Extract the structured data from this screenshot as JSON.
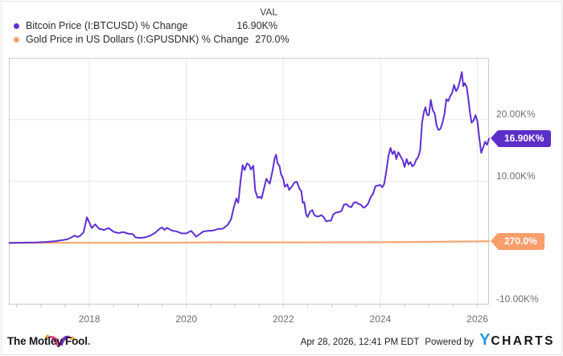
{
  "legend": {
    "val_header": "VAL",
    "series": [
      {
        "label": "Bitcoin Price (I:BTCUSD) % Change",
        "value": "16.90K%",
        "color": "#5f30d2"
      },
      {
        "label": "Gold Price in US Dollars (I:GPUSDNK) % Change",
        "value": "270.0%",
        "color": "#f9a26b"
      }
    ]
  },
  "chart_data": {
    "type": "line",
    "grid": true,
    "legend_position": "top-left",
    "x_axis": {
      "range": [
        2016.34,
        2026.24
      ],
      "ticks": [
        2018,
        2020,
        2022,
        2024,
        2026
      ],
      "labels": [
        "2018",
        "2020",
        "2022",
        "2024",
        "2026"
      ],
      "minor_tick_step_years": 0.5
    },
    "y_axis": {
      "range_pct": [
        -10000,
        30000
      ],
      "gridline_values_pct": [
        20000,
        10000,
        0
      ],
      "tick_values_pct": [
        20000,
        10000,
        -10000
      ],
      "tick_labels": [
        "20.00K%",
        "10.00K%",
        "-10.00K%"
      ]
    },
    "series": [
      {
        "name": "Bitcoin Price (I:BTCUSD) % Change",
        "color": "#5f30d2",
        "end_label": "16.90K%",
        "end_value_pct": 16900,
        "points": [
          [
            2016.35,
            0
          ],
          [
            2016.6,
            30
          ],
          [
            2016.9,
            80
          ],
          [
            2017.1,
            150
          ],
          [
            2017.3,
            280
          ],
          [
            2017.45,
            450
          ],
          [
            2017.55,
            600
          ],
          [
            2017.62,
            850
          ],
          [
            2017.7,
            1200
          ],
          [
            2017.75,
            950
          ],
          [
            2017.8,
            1100
          ],
          [
            2017.88,
            1700
          ],
          [
            2017.95,
            4150
          ],
          [
            2018.0,
            3300
          ],
          [
            2018.05,
            2400
          ],
          [
            2018.12,
            3000
          ],
          [
            2018.2,
            2300
          ],
          [
            2018.3,
            2100
          ],
          [
            2018.4,
            2400
          ],
          [
            2018.5,
            1800
          ],
          [
            2018.6,
            1600
          ],
          [
            2018.7,
            1750
          ],
          [
            2018.8,
            1500
          ],
          [
            2018.9,
            1400
          ],
          [
            2018.95,
            900
          ],
          [
            2019.05,
            800
          ],
          [
            2019.15,
            900
          ],
          [
            2019.25,
            1150
          ],
          [
            2019.35,
            1600
          ],
          [
            2019.45,
            2300
          ],
          [
            2019.5,
            2500
          ],
          [
            2019.55,
            2100
          ],
          [
            2019.6,
            2450
          ],
          [
            2019.7,
            2000
          ],
          [
            2019.8,
            1850
          ],
          [
            2019.9,
            1550
          ],
          [
            2020.0,
            1550
          ],
          [
            2020.1,
            1950
          ],
          [
            2020.2,
            1000
          ],
          [
            2020.28,
            1450
          ],
          [
            2020.35,
            1850
          ],
          [
            2020.45,
            1950
          ],
          [
            2020.55,
            2000
          ],
          [
            2020.65,
            2250
          ],
          [
            2020.75,
            2300
          ],
          [
            2020.85,
            2900
          ],
          [
            2020.92,
            3800
          ],
          [
            2020.98,
            5800
          ],
          [
            2021.03,
            7200
          ],
          [
            2021.07,
            6500
          ],
          [
            2021.12,
            10200
          ],
          [
            2021.16,
            12600
          ],
          [
            2021.2,
            11800
          ],
          [
            2021.25,
            12900
          ],
          [
            2021.3,
            12600
          ],
          [
            2021.33,
            11900
          ],
          [
            2021.38,
            12500
          ],
          [
            2021.42,
            8500
          ],
          [
            2021.47,
            7300
          ],
          [
            2021.52,
            7500
          ],
          [
            2021.55,
            7200
          ],
          [
            2021.6,
            8800
          ],
          [
            2021.65,
            10400
          ],
          [
            2021.68,
            10000
          ],
          [
            2021.72,
            9600
          ],
          [
            2021.78,
            11800
          ],
          [
            2021.82,
            13700
          ],
          [
            2021.85,
            14300
          ],
          [
            2021.88,
            12900
          ],
          [
            2021.92,
            12500
          ],
          [
            2021.95,
            11200
          ],
          [
            2022.0,
            10300
          ],
          [
            2022.03,
            9100
          ],
          [
            2022.08,
            9500
          ],
          [
            2022.12,
            8600
          ],
          [
            2022.18,
            9200
          ],
          [
            2022.23,
            9800
          ],
          [
            2022.28,
            9900
          ],
          [
            2022.33,
            8800
          ],
          [
            2022.37,
            8400
          ],
          [
            2022.4,
            6500
          ],
          [
            2022.43,
            6600
          ],
          [
            2022.47,
            4600
          ],
          [
            2022.5,
            4200
          ],
          [
            2022.55,
            5100
          ],
          [
            2022.6,
            5300
          ],
          [
            2022.63,
            4600
          ],
          [
            2022.68,
            4300
          ],
          [
            2022.73,
            4300
          ],
          [
            2022.78,
            4500
          ],
          [
            2022.83,
            4200
          ],
          [
            2022.88,
            3500
          ],
          [
            2022.93,
            3600
          ],
          [
            2022.98,
            3600
          ],
          [
            2023.03,
            4600
          ],
          [
            2023.08,
            4900
          ],
          [
            2023.15,
            5000
          ],
          [
            2023.2,
            5200
          ],
          [
            2023.25,
            6200
          ],
          [
            2023.3,
            6300
          ],
          [
            2023.35,
            5900
          ],
          [
            2023.4,
            5800
          ],
          [
            2023.45,
            6500
          ],
          [
            2023.5,
            6600
          ],
          [
            2023.55,
            6300
          ],
          [
            2023.6,
            6200
          ],
          [
            2023.65,
            5700
          ],
          [
            2023.7,
            5900
          ],
          [
            2023.75,
            6400
          ],
          [
            2023.8,
            7400
          ],
          [
            2023.85,
            8000
          ],
          [
            2023.9,
            9200
          ],
          [
            2023.95,
            9300
          ],
          [
            2024.0,
            9400
          ],
          [
            2024.04,
            9000
          ],
          [
            2024.08,
            9600
          ],
          [
            2024.12,
            11500
          ],
          [
            2024.17,
            14200
          ],
          [
            2024.21,
            15400
          ],
          [
            2024.25,
            14400
          ],
          [
            2024.29,
            14900
          ],
          [
            2024.33,
            13600
          ],
          [
            2024.37,
            14700
          ],
          [
            2024.42,
            14000
          ],
          [
            2024.46,
            13400
          ],
          [
            2024.5,
            12300
          ],
          [
            2024.54,
            13600
          ],
          [
            2024.58,
            12700
          ],
          [
            2024.62,
            13100
          ],
          [
            2024.66,
            12400
          ],
          [
            2024.7,
            12700
          ],
          [
            2024.74,
            13500
          ],
          [
            2024.78,
            13900
          ],
          [
            2024.82,
            15000
          ],
          [
            2024.86,
            19500
          ],
          [
            2024.9,
            21300
          ],
          [
            2024.93,
            22000
          ],
          [
            2024.96,
            20800
          ],
          [
            2025.0,
            20700
          ],
          [
            2025.04,
            23200
          ],
          [
            2025.08,
            21500
          ],
          [
            2025.12,
            21000
          ],
          [
            2025.16,
            19000
          ],
          [
            2025.2,
            18300
          ],
          [
            2025.24,
            18500
          ],
          [
            2025.28,
            19500
          ],
          [
            2025.32,
            20800
          ],
          [
            2025.36,
            23300
          ],
          [
            2025.4,
            23000
          ],
          [
            2025.44,
            23800
          ],
          [
            2025.48,
            24300
          ],
          [
            2025.52,
            25600
          ],
          [
            2025.56,
            24600
          ],
          [
            2025.6,
            25100
          ],
          [
            2025.64,
            26300
          ],
          [
            2025.68,
            27700
          ],
          [
            2025.71,
            25400
          ],
          [
            2025.74,
            25900
          ],
          [
            2025.78,
            25300
          ],
          [
            2025.81,
            23600
          ],
          [
            2025.85,
            21000
          ],
          [
            2025.88,
            19500
          ],
          [
            2025.92,
            19800
          ],
          [
            2025.96,
            20700
          ],
          [
            2026.0,
            19800
          ],
          [
            2026.04,
            17000
          ],
          [
            2026.08,
            14600
          ],
          [
            2026.12,
            15500
          ],
          [
            2026.16,
            16400
          ],
          [
            2026.2,
            15900
          ],
          [
            2026.24,
            16900
          ]
        ]
      },
      {
        "name": "Gold Price in US Dollars (I:GPUSDNK) % Change",
        "color": "#f9a26b",
        "end_label": "270.0%",
        "end_value_pct": 270,
        "points": [
          [
            2016.35,
            0
          ],
          [
            2016.8,
            8
          ],
          [
            2017.2,
            12
          ],
          [
            2017.8,
            18
          ],
          [
            2018.3,
            22
          ],
          [
            2018.8,
            20
          ],
          [
            2019.3,
            35
          ],
          [
            2019.8,
            50
          ],
          [
            2020.2,
            60
          ],
          [
            2020.6,
            90
          ],
          [
            2021.0,
            80
          ],
          [
            2021.5,
            78
          ],
          [
            2022.0,
            85
          ],
          [
            2022.5,
            75
          ],
          [
            2023.0,
            90
          ],
          [
            2023.5,
            100
          ],
          [
            2024.0,
            110
          ],
          [
            2024.4,
            140
          ],
          [
            2024.8,
            165
          ],
          [
            2025.2,
            190
          ],
          [
            2025.6,
            220
          ],
          [
            2026.0,
            250
          ],
          [
            2026.24,
            270
          ]
        ]
      }
    ],
    "colors": {
      "gridline": "#e7e7e7",
      "plot_border": "#cccccc",
      "axis_text": "#6e6e6e",
      "bitcoin_badge": "#5d2fc9",
      "gold_badge": "#f99e6b"
    }
  },
  "footer": {
    "brand": "The Motley Fool",
    "brand_period": ".",
    "timestamp": "Apr 28, 2026, 12:41 PM EDT",
    "powered_by": "Powered by",
    "ycharts_y": "Y",
    "ycharts_rest": "CHARTS"
  }
}
